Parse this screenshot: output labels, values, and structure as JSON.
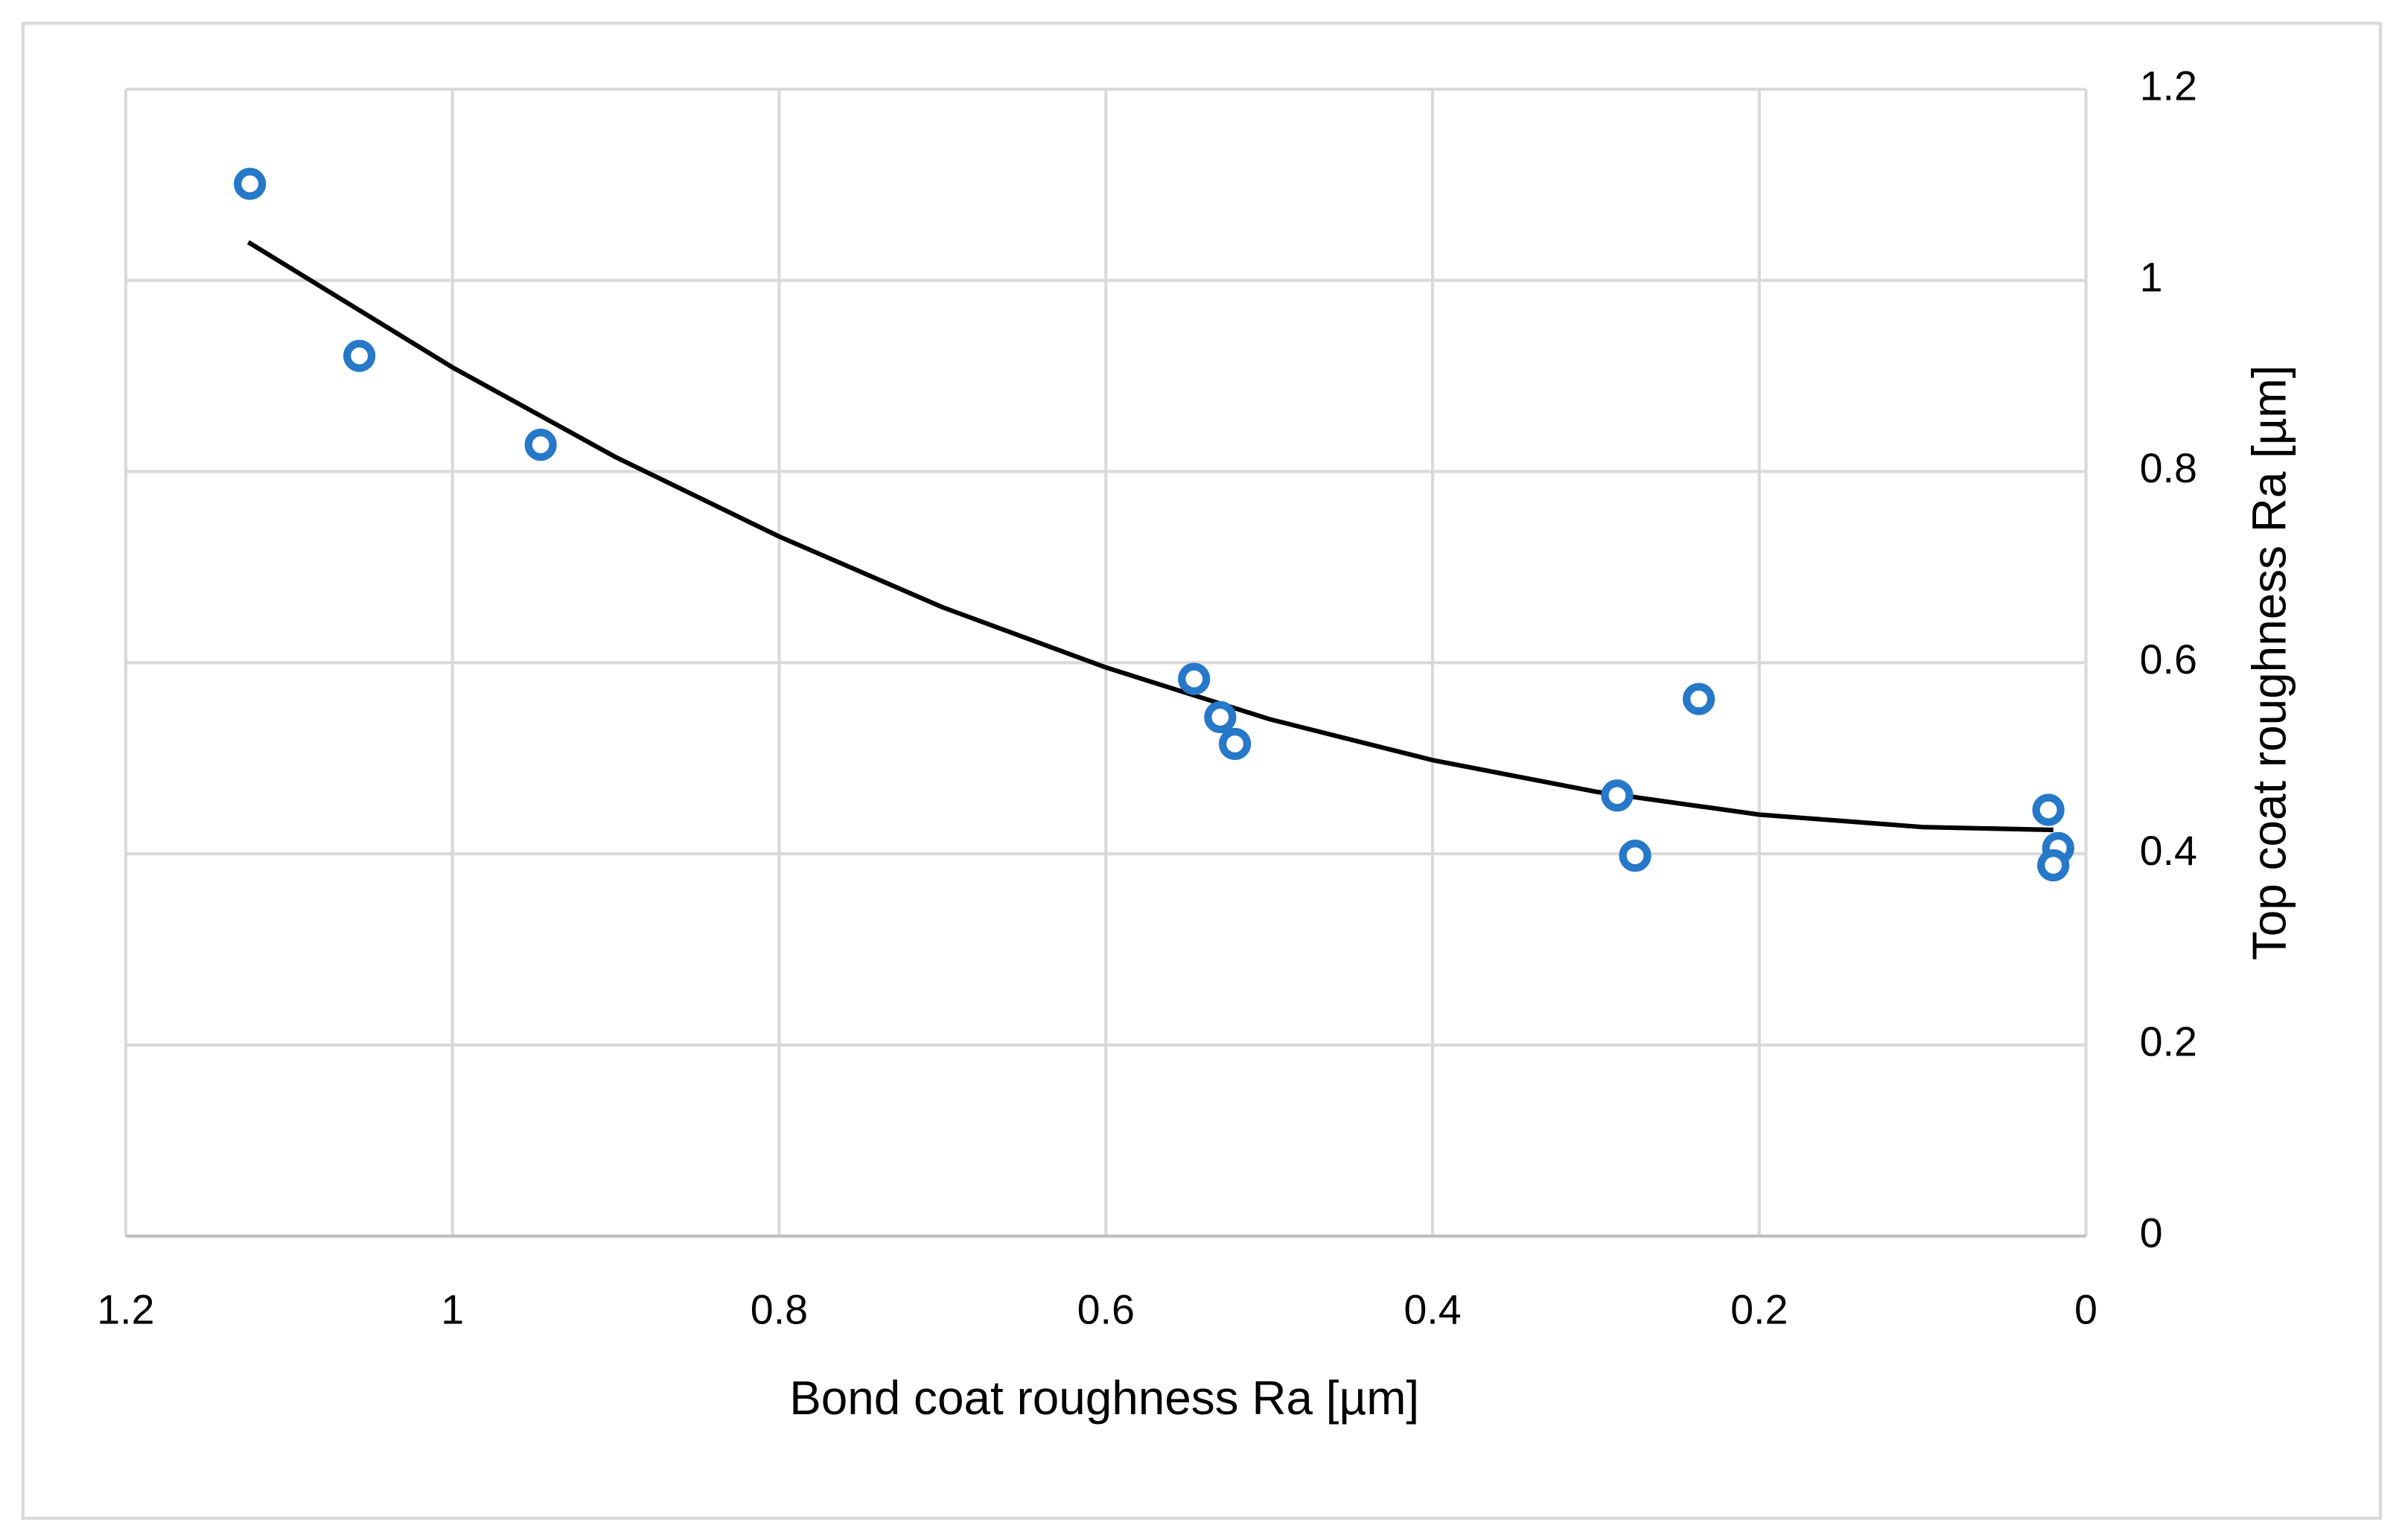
{
  "chart_data": {
    "type": "scatter",
    "x_label": "Bond coat roughness Ra [µm]",
    "y_label": "Top coat roughness Ra [µm]",
    "x": [
      1.124,
      1.057,
      0.946,
      0.546,
      0.53,
      0.521,
      0.287,
      0.276,
      0.237,
      0.023,
      0.017,
      0.02
    ],
    "values": [
      1.101,
      0.921,
      0.828,
      0.583,
      0.543,
      0.515,
      0.461,
      0.398,
      0.562,
      0.446,
      0.406,
      0.388
    ],
    "color": "#2678c9",
    "trendline": {
      "color": "#000000",
      "x": [
        1.125,
        1,
        0.9,
        0.8,
        0.7,
        0.6,
        0.5,
        0.4,
        0.3,
        0.2,
        0.1,
        0.02
      ],
      "values": [
        1.04,
        0.909,
        0.815,
        0.732,
        0.658,
        0.595,
        0.541,
        0.498,
        0.465,
        0.441,
        0.428,
        0.425
      ]
    },
    "xlim": [
      1.2,
      0
    ],
    "xticks": [
      1.2,
      1,
      0.8,
      0.6,
      0.4,
      0.2,
      0
    ],
    "ylim": [
      0,
      1.2
    ],
    "yticks": [
      0,
      0.2,
      0.4,
      0.6,
      0.8,
      1,
      1.2
    ],
    "y_axis_side": "right",
    "grid": true
  }
}
